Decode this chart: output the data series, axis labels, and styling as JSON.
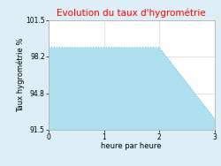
{
  "title": "Evolution du taux d'hygrométrie",
  "xlabel": "heure par heure",
  "ylabel": "Taux hygrométrie %",
  "x": [
    0,
    2.0,
    3.0
  ],
  "y": [
    99.0,
    99.0,
    92.5
  ],
  "fill_color": "#aee0f0",
  "line_color": "#6cc4de",
  "title_color": "#ff0000",
  "bg_color": "#ddeef6",
  "plot_bg_color": "#ffffff",
  "ylim": [
    91.5,
    101.5
  ],
  "xlim": [
    0,
    3
  ],
  "yticks": [
    91.5,
    94.8,
    98.2,
    101.5
  ],
  "xticks": [
    0,
    1,
    2,
    3
  ],
  "grid_color": "#cccccc",
  "title_fontsize": 7.5,
  "label_fontsize": 6,
  "tick_fontsize": 5.5
}
